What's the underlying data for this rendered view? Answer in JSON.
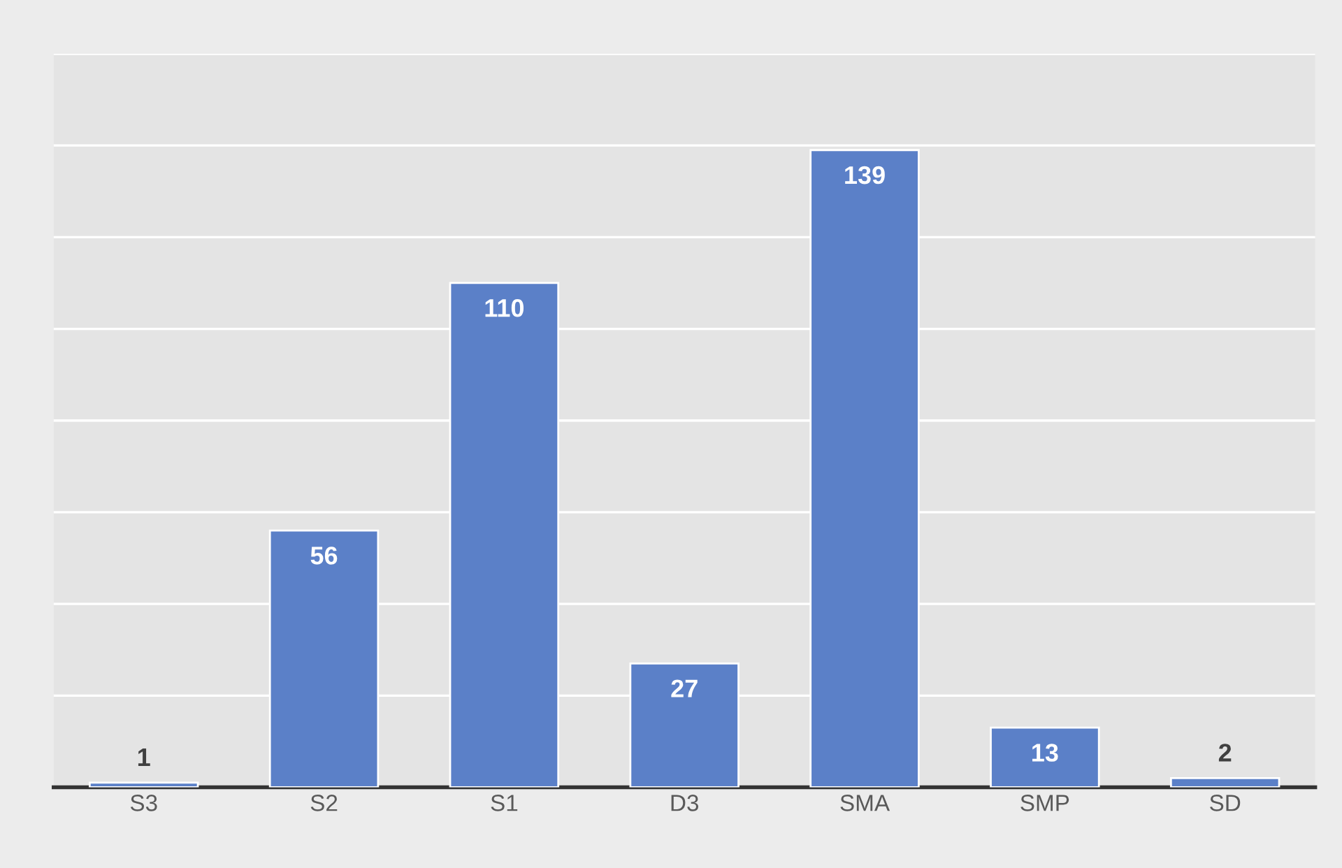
{
  "chart_data": {
    "type": "bar",
    "categories": [
      "S3",
      "S2",
      "S1",
      "D3",
      "SMA",
      "SMP",
      "SD"
    ],
    "values": [
      1,
      56,
      110,
      27,
      139,
      13,
      2
    ],
    "color": "#5b80c8",
    "ylim": [
      0,
      160
    ],
    "yticks": [
      {
        "value": 0,
        "label": null
      },
      {
        "value": 20,
        "label": null
      },
      {
        "value": 40,
        "label": null
      },
      {
        "value": 60,
        "label": null
      },
      {
        "value": 80,
        "label": null
      },
      {
        "value": 100,
        "label": null
      },
      {
        "value": 120,
        "label": null
      },
      {
        "value": 140,
        "label": null
      },
      {
        "value": 160,
        "label": null
      }
    ],
    "grid": "y",
    "tick_labels": "x",
    "data_labels": true
  }
}
